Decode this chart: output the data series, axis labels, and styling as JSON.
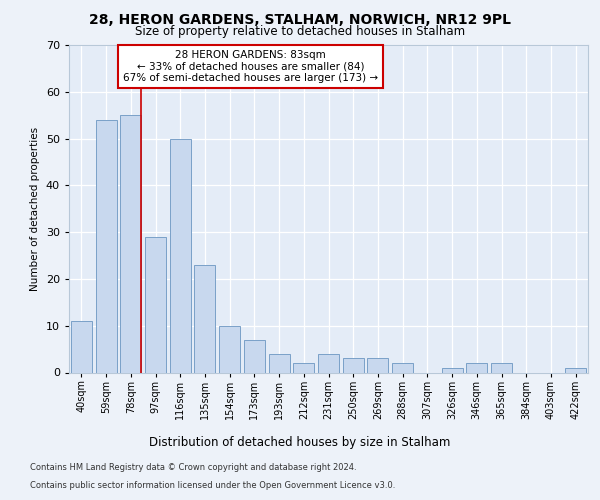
{
  "title1": "28, HERON GARDENS, STALHAM, NORWICH, NR12 9PL",
  "title2": "Size of property relative to detached houses in Stalham",
  "xlabel": "Distribution of detached houses by size in Stalham",
  "ylabel": "Number of detached properties",
  "categories": [
    "40sqm",
    "59sqm",
    "78sqm",
    "97sqm",
    "116sqm",
    "135sqm",
    "154sqm",
    "173sqm",
    "193sqm",
    "212sqm",
    "231sqm",
    "250sqm",
    "269sqm",
    "288sqm",
    "307sqm",
    "326sqm",
    "346sqm",
    "365sqm",
    "384sqm",
    "403sqm",
    "422sqm"
  ],
  "values": [
    11,
    54,
    55,
    29,
    50,
    23,
    10,
    7,
    4,
    2,
    4,
    3,
    3,
    2,
    0,
    1,
    2,
    2,
    0,
    0,
    1
  ],
  "bar_color": "#c8d8ee",
  "bar_edge_color": "#7aa0c8",
  "annotation_title": "28 HERON GARDENS: 83sqm",
  "annotation_line1": "← 33% of detached houses are smaller (84)",
  "annotation_line2": "67% of semi-detached houses are larger (173) →",
  "redline_bar_index": 2,
  "bar_width": 0.85,
  "ylim": [
    0,
    70
  ],
  "yticks": [
    0,
    10,
    20,
    30,
    40,
    50,
    60,
    70
  ],
  "footnote1": "Contains HM Land Registry data © Crown copyright and database right 2024.",
  "footnote2": "Contains public sector information licensed under the Open Government Licence v3.0.",
  "bg_color": "#edf2f9",
  "plot_bg_color": "#e4ecf7"
}
